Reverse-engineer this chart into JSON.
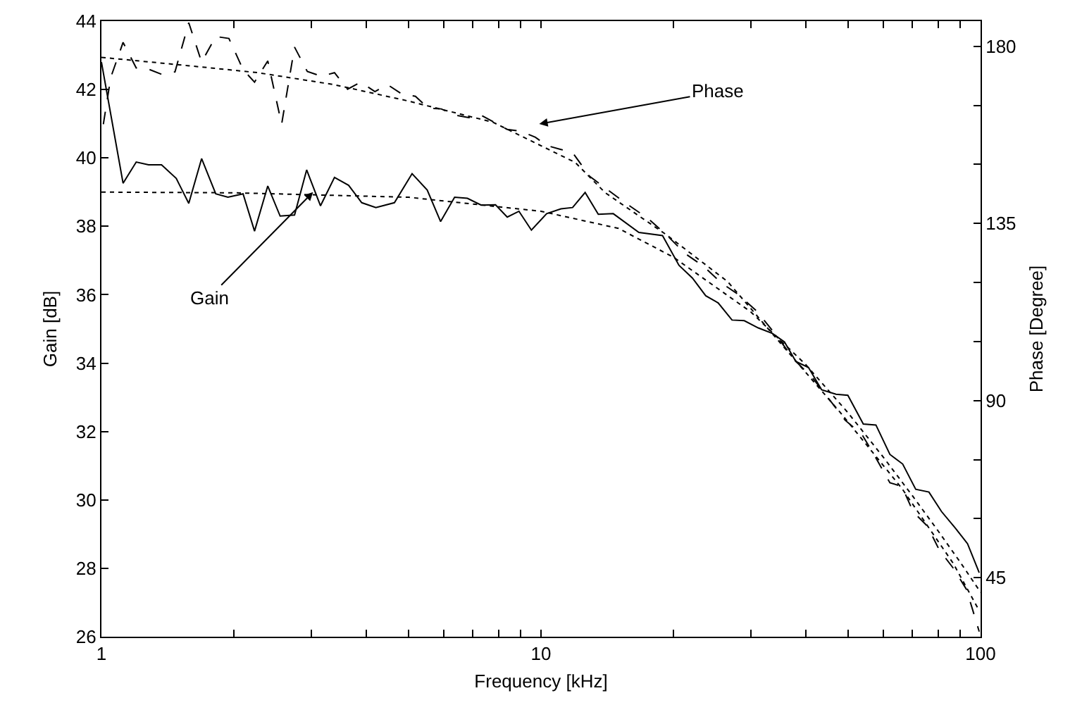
{
  "chart_data": {
    "type": "line",
    "xlabel": "Frequency [kHz]",
    "ylabel": "Gain [dB]",
    "y2label": "Phase [Degree]",
    "log": "x",
    "grid": false,
    "xlim": [
      1,
      100
    ],
    "xticks": [
      1,
      {
        "value": 2,
        "label": null
      },
      {
        "value": 3,
        "label": null
      },
      {
        "value": 4,
        "label": null
      },
      {
        "value": 5,
        "label": null
      },
      {
        "value": 6,
        "label": null
      },
      {
        "value": 7,
        "label": null
      },
      {
        "value": 8,
        "label": null
      },
      {
        "value": 9,
        "label": null
      },
      10,
      {
        "value": 20,
        "label": null
      },
      {
        "value": 30,
        "label": null
      },
      {
        "value": 40,
        "label": null
      },
      {
        "value": 50,
        "label": null
      },
      {
        "value": 60,
        "label": null
      },
      {
        "value": 70,
        "label": null
      },
      {
        "value": 80,
        "label": null
      },
      {
        "value": 90,
        "label": null
      },
      100
    ],
    "ylim": [
      26,
      44
    ],
    "yticks": [
      26,
      28,
      30,
      32,
      34,
      36,
      38,
      40,
      42,
      44
    ],
    "y2lim": [
      30,
      186.4
    ],
    "y2ticks": [
      45,
      {
        "value": 60,
        "label": null
      },
      {
        "value": 75,
        "label": null
      },
      90,
      {
        "value": 105,
        "label": null
      },
      {
        "value": 120,
        "label": null
      },
      135,
      {
        "value": 150,
        "label": null
      },
      {
        "value": 165,
        "label": null
      },
      180
    ],
    "series": [
      {
        "color": "#000000",
        "line_style": "solid",
        "x": [
          1.0,
          1.12,
          1.2,
          1.28,
          1.37,
          1.48,
          1.58,
          1.69,
          1.82,
          1.94,
          2.1,
          2.23,
          2.39,
          2.55,
          2.75,
          2.93,
          3.15,
          3.39,
          3.65,
          3.91,
          4.21,
          4.64,
          5.09,
          5.51,
          5.91,
          6.36,
          6.8,
          7.31,
          7.88,
          8.38,
          8.91,
          9.51,
          10.3,
          11.1,
          11.8,
          12.6,
          13.5,
          14.6,
          16.7,
          18.9,
          20.6,
          22.1,
          23.7,
          25.3,
          27.2,
          29.0,
          31.2,
          33.6,
          35.8,
          38.0,
          40.6,
          43.5,
          46.9,
          49.9,
          54.1,
          57.8,
          62.2,
          66.5,
          71.2,
          76.3,
          81.5,
          87.7,
          93.4,
          99.3
        ],
        "values": [
          42.8,
          39.26,
          39.88,
          39.8,
          39.8,
          39.4,
          38.67,
          39.98,
          38.95,
          38.85,
          38.95,
          37.86,
          39.18,
          38.3,
          38.33,
          39.65,
          38.6,
          39.43,
          39.2,
          38.69,
          38.55,
          38.69,
          39.54,
          39.06,
          38.14,
          38.85,
          38.82,
          38.62,
          38.63,
          38.27,
          38.44,
          37.89,
          38.37,
          38.51,
          38.55,
          38.99,
          38.35,
          38.37,
          37.82,
          37.73,
          36.86,
          36.49,
          35.97,
          35.76,
          35.26,
          35.24,
          35.03,
          34.87,
          34.62,
          34.05,
          33.87,
          33.22,
          33.09,
          33.06,
          32.22,
          32.19,
          31.33,
          31.05,
          30.31,
          30.23,
          29.66,
          29.17,
          28.72,
          27.87
        ]
      },
      {
        "color": "#000000",
        "line_style": "dashed",
        "axis": "y2",
        "x": [
          1.01,
          1.05,
          1.12,
          1.2,
          1.28,
          1.37,
          1.47,
          1.58,
          1.69,
          1.82,
          1.95,
          2.1,
          2.23,
          2.39,
          2.57,
          2.75,
          2.94,
          3.17,
          3.39,
          3.63,
          3.89,
          4.19,
          4.47,
          4.82,
          5.18,
          5.54,
          5.93,
          6.39,
          6.85,
          7.31,
          7.88,
          8.38,
          9.02,
          9.71,
          10.3,
          11.1,
          11.8,
          12.9,
          14.0,
          15.7,
          17.5,
          19.3,
          21.3,
          23.5,
          25.7,
          27.9,
          30.9,
          34.0,
          37.6,
          41.5,
          45.7,
          49.2,
          53.7,
          57.0,
          62.2,
          66.2,
          70.3,
          75.7,
          80.5,
          86.7,
          92.9,
          99.3
        ],
        "values": [
          160.2,
          172.1,
          181.0,
          174.5,
          174.2,
          172.9,
          173.5,
          186.0,
          176.0,
          182.5,
          182.0,
          174.1,
          170.9,
          176.3,
          160.2,
          179.8,
          173.6,
          172.4,
          173.3,
          169.1,
          170.9,
          168.5,
          170.3,
          167.9,
          167.3,
          164.3,
          164.1,
          162.5,
          161.9,
          162.5,
          160.5,
          158.9,
          158.4,
          156.9,
          154.8,
          153.8,
          153.0,
          147.0,
          144.0,
          139.9,
          136.3,
          132.1,
          127.3,
          124.0,
          119.9,
          117.2,
          112.8,
          107.1,
          100.5,
          95.7,
          89.7,
          85.0,
          81.4,
          76.6,
          69.1,
          68.2,
          61.7,
          58.1,
          52.1,
          47.4,
          42.0,
          31.3
        ]
      },
      {
        "color": "#000000",
        "line_style": "dotted",
        "x": [
          1,
          2,
          5,
          10,
          15,
          20,
          30,
          40,
          50,
          60,
          70,
          80,
          90,
          100
        ],
        "values": [
          39.0,
          38.98,
          38.85,
          38.44,
          37.94,
          37.1,
          35.5,
          33.96,
          32.54,
          31.26,
          30.12,
          29.1,
          28.17,
          27.3
        ]
      },
      {
        "color": "#000000",
        "line_style": "dotted",
        "axis": "y2",
        "x": [
          1,
          1.57,
          2.27,
          3.37,
          4.99,
          7.78,
          11.96,
          14.0,
          19.3,
          26.6,
          35.8,
          48.1,
          66.2,
          86.7,
          99.3
        ],
        "values": [
          177.2,
          175.1,
          173.3,
          170.3,
          166.1,
          160.7,
          150.5,
          142.8,
          132.1,
          120.2,
          103.4,
          86.8,
          67.7,
          48.6,
          36.6
        ]
      }
    ],
    "annotations": [
      {
        "text": "Gain",
        "x": 3.03,
        "y": 39.0
      },
      "Phase"
    ]
  }
}
